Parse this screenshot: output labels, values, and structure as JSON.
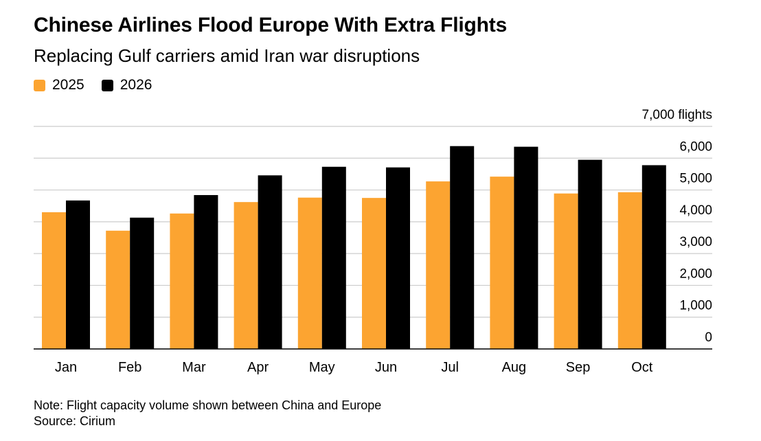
{
  "header": {
    "title": "Chinese Airlines Flood Europe With Extra Flights",
    "subtitle": "Replacing Gulf carriers amid Iran war disruptions"
  },
  "legend": {
    "items": [
      {
        "label": "2025",
        "color": "#fca431"
      },
      {
        "label": "2026",
        "color": "#000000"
      }
    ]
  },
  "footer": {
    "note": "Note: Flight capacity volume shown between China and Europe",
    "source": "Source: Cirium"
  },
  "chart_data": {
    "type": "bar",
    "title": "Chinese Airlines Flood Europe With Extra Flights",
    "subtitle": "Replacing Gulf carriers amid Iran war disruptions",
    "categories": [
      "Jan",
      "Feb",
      "Mar",
      "Apr",
      "May",
      "Jun",
      "Jul",
      "Aug",
      "Sep",
      "Oct"
    ],
    "series": [
      {
        "name": "2025",
        "color": "#fca431",
        "values": [
          4300,
          3720,
          4260,
          4620,
          4760,
          4750,
          5270,
          5420,
          4890,
          4930
        ]
      },
      {
        "name": "2026",
        "color": "#000000",
        "values": [
          4670,
          4130,
          4840,
          5460,
          5730,
          5710,
          6380,
          6360,
          5950,
          5780
        ]
      }
    ],
    "ylim": [
      0,
      7000
    ],
    "yticks": [
      0,
      1000,
      2000,
      3000,
      4000,
      5000,
      6000,
      7000
    ],
    "ytick_labels": [
      "0",
      "1,000",
      "2,000",
      "3,000",
      "4,000",
      "5,000",
      "6,000",
      "7,000 flights"
    ],
    "yaxis_position": "right",
    "grid": true,
    "legend_position": "top-left",
    "xlabel": "",
    "ylabel": ""
  }
}
